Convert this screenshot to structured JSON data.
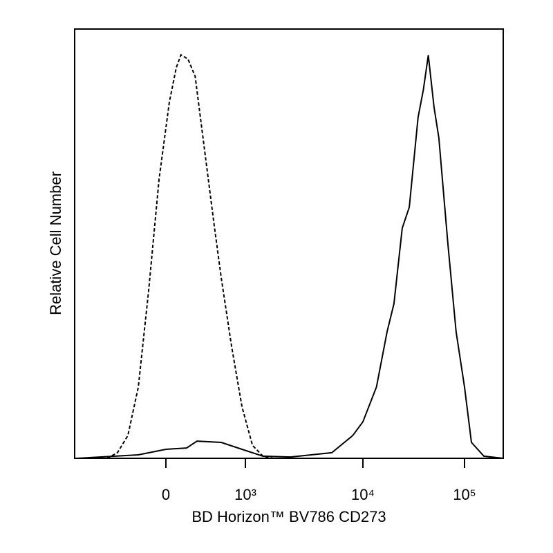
{
  "chart_data": {
    "type": "line",
    "xlabel": "BD Horizon™ BV786 CD273",
    "ylabel": "Relative Cell Number",
    "xscale": "biexponential",
    "xlim": [
      -1500,
      250000
    ],
    "xticks": [
      0,
      {
        "value": 1000,
        "label": "10³"
      },
      {
        "value": 10000,
        "label": "10⁴"
      },
      {
        "value": 100000,
        "label": "10⁵"
      }
    ],
    "ylim": [
      0,
      100
    ],
    "series": [
      {
        "color": "#000000",
        "dash": true,
        "x": [
          -455,
          -303,
          -198,
          -124,
          -70,
          -26,
          13,
          40,
          60,
          93,
          134,
          198,
          303,
          397,
          593,
          879,
          1150,
          1410,
          1720
        ],
        "values": [
          0,
          1.3,
          5.3,
          16.6,
          39,
          65,
          83,
          91,
          94,
          93,
          89,
          73,
          54,
          42,
          26,
          12,
          3,
          0.5,
          0
        ]
      },
      {
        "color": "#000000",
        "dash": false,
        "x": [
          -1410,
          -124,
          0,
          86,
          146,
          397,
          879,
          1410,
          2420,
          5440,
          8200,
          10000,
          13600,
          17300,
          20200,
          24400,
          28600,
          34900,
          39300,
          44000,
          50100,
          55900,
          68300,
          82600,
          100000,
          117000,
          155000,
          240000
        ],
        "values": [
          0,
          0.8,
          2.1,
          2.4,
          4.0,
          3.7,
          2.1,
          0.5,
          0.3,
          1.3,
          5.3,
          8.5,
          16.6,
          29.5,
          36,
          53.6,
          58.5,
          79.4,
          85.8,
          93.9,
          81.8,
          74.6,
          50.4,
          29.5,
          16.6,
          3.7,
          0.5,
          0
        ]
      }
    ]
  }
}
